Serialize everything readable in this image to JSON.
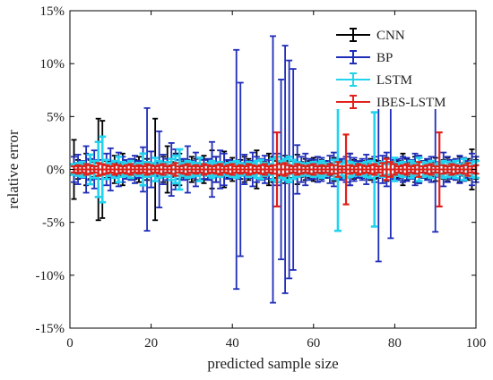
{
  "chart_data": {
    "type": "errorbar",
    "title": "",
    "xlabel": "predicted sample size",
    "ylabel": "relative error",
    "xlim": [
      0,
      100
    ],
    "ylim": [
      -15,
      15
    ],
    "x_ticks": [
      0,
      20,
      40,
      60,
      80,
      100
    ],
    "x_tick_labels": [
      "0",
      "20",
      "40",
      "60",
      "80",
      "100"
    ],
    "y_ticks": [
      -15,
      -10,
      -5,
      0,
      5,
      10,
      15
    ],
    "y_tick_labels": [
      "-15%",
      "-10%",
      "-5%",
      "0%",
      "5%",
      "10%",
      "15%"
    ],
    "grid": false,
    "legend_position": "top-right",
    "x_start": 1,
    "x_step": 1,
    "center": 0,
    "series": [
      {
        "name": "CNN",
        "color": "#000000",
        "errors": [
          2.8,
          0.9,
          0.6,
          1.5,
          0.9,
          0.7,
          4.8,
          4.6,
          0.8,
          0.7,
          1.3,
          0.6,
          1.5,
          0.8,
          0.5,
          0.9,
          1.2,
          1.5,
          1.0,
          0.5,
          4.8,
          0.7,
          1.2,
          2.2,
          0.7,
          1.5,
          1.5,
          0.7,
          0.9,
          1.2,
          1.0,
          0.5,
          1.3,
          0.9,
          1.8,
          1.2,
          0.7,
          1.7,
          0.8,
          1.1,
          0.6,
          0.9,
          1.2,
          1.0,
          0.8,
          1.8,
          0.9,
          0.7,
          1.5,
          1.2,
          0.8,
          0.6,
          1.3,
          0.8,
          0.9,
          1.4,
          0.7,
          1.0,
          0.8,
          1.1,
          0.7,
          0.9,
          0.8,
          0.6,
          1.1,
          0.9,
          0.7,
          0.8,
          1.5,
          0.9,
          0.7,
          0.8,
          0.6,
          1.0,
          0.9,
          0.8,
          0.7,
          1.1,
          0.6,
          0.9,
          0.8,
          1.5,
          1.0,
          0.7,
          1.2,
          1.3,
          0.8,
          0.9,
          0.7,
          1.1,
          0.6,
          0.9,
          1.1,
          0.7,
          0.8,
          1.2,
          0.6,
          1.0,
          1.9,
          0.9
        ]
      },
      {
        "name": "BP",
        "color": "#1f2db8",
        "errors": [
          1.2,
          1.4,
          0.8,
          2.2,
          1.0,
          1.8,
          0.9,
          0.5,
          1.5,
          2.0,
          0.7,
          1.6,
          1.2,
          0.9,
          1.0,
          1.3,
          0.8,
          2.1,
          5.8,
          1.7,
          0.6,
          3.6,
          1.4,
          1.0,
          2.5,
          1.9,
          0.9,
          1.0,
          2.2,
          0.8,
          1.6,
          1.1,
          0.9,
          1.0,
          2.6,
          1.2,
          1.8,
          1.5,
          0.9,
          0.8,
          11.3,
          8.2,
          1.4,
          0.8,
          1.6,
          1.2,
          1.0,
          1.3,
          0.9,
          12.6,
          1.5,
          8.5,
          11.7,
          10.3,
          9.5,
          2.3,
          1.2,
          1.5,
          1.0,
          0.9,
          1.2,
          1.1,
          0.8,
          1.3,
          1.6,
          0.9,
          1.0,
          1.2,
          1.5,
          1.1,
          0.8,
          1.0,
          1.4,
          0.9,
          1.2,
          8.7,
          1.3,
          1.6,
          6.5,
          0.9,
          1.0,
          1.2,
          1.1,
          0.9,
          1.5,
          1.3,
          0.8,
          1.0,
          1.2,
          5.9,
          0.7,
          1.6,
          1.2,
          0.9,
          1.0,
          1.3,
          1.1,
          0.8,
          1.5,
          1.2
        ]
      },
      {
        "name": "LSTM",
        "color": "#22d3ee",
        "errors": [
          0.5,
          0.6,
          0.7,
          0.5,
          1.4,
          0.8,
          2.6,
          3.1,
          0.9,
          0.6,
          0.8,
          1.2,
          0.7,
          0.6,
          0.8,
          0.5,
          0.6,
          1.5,
          0.7,
          0.6,
          1.1,
          0.8,
          0.6,
          0.7,
          1.0,
          1.3,
          1.9,
          0.6,
          0.8,
          0.7,
          0.6,
          1.1,
          0.5,
          0.6,
          0.8,
          0.6,
          0.7,
          0.5,
          0.6,
          0.7,
          0.8,
          0.6,
          0.5,
          0.7,
          0.6,
          0.8,
          0.9,
          0.6,
          0.5,
          1.0,
          1.2,
          0.8,
          1.0,
          1.2,
          0.9,
          0.7,
          0.6,
          0.5,
          0.6,
          0.7,
          0.6,
          0.8,
          0.6,
          0.5,
          0.9,
          5.8,
          0.6,
          0.8,
          0.7,
          0.6,
          0.5,
          0.6,
          0.7,
          0.8,
          5.4,
          0.6,
          0.7,
          0.5,
          0.6,
          1.1,
          0.6,
          0.7,
          0.5,
          0.8,
          0.6,
          1.1,
          0.7,
          0.6,
          0.8,
          0.5,
          0.6,
          0.8,
          0.7,
          0.6,
          0.8,
          0.5,
          1.0,
          0.6,
          0.7,
          0.8
        ]
      },
      {
        "name": "IBES-LSTM",
        "color": "#e0201a",
        "errors": [
          0.3,
          0.4,
          0.3,
          0.5,
          0.4,
          0.3,
          0.6,
          0.5,
          0.4,
          0.3,
          0.5,
          0.4,
          0.3,
          0.4,
          0.5,
          0.3,
          0.4,
          0.3,
          0.5,
          0.4,
          0.3,
          0.4,
          0.5,
          0.3,
          0.4,
          0.6,
          0.3,
          0.4,
          0.5,
          0.3,
          0.4,
          0.3,
          0.5,
          0.4,
          0.3,
          0.4,
          0.5,
          0.3,
          0.4,
          0.5,
          0.3,
          0.4,
          0.3,
          0.5,
          0.4,
          0.3,
          0.4,
          0.5,
          0.3,
          0.4,
          3.5,
          0.5,
          0.6,
          0.4,
          0.3,
          0.5,
          0.4,
          0.3,
          0.4,
          0.5,
          0.3,
          0.4,
          0.3,
          0.5,
          0.4,
          0.7,
          0.3,
          3.3,
          0.4,
          0.3,
          0.5,
          0.4,
          0.3,
          0.4,
          0.5,
          0.3,
          0.6,
          1.0,
          0.7,
          0.5,
          0.3,
          0.4,
          0.5,
          0.3,
          0.4,
          0.7,
          0.3,
          0.4,
          0.5,
          0.3,
          3.5,
          0.4,
          0.3,
          0.5,
          0.4,
          0.3,
          0.4,
          0.6,
          0.3,
          0.4
        ]
      }
    ]
  }
}
